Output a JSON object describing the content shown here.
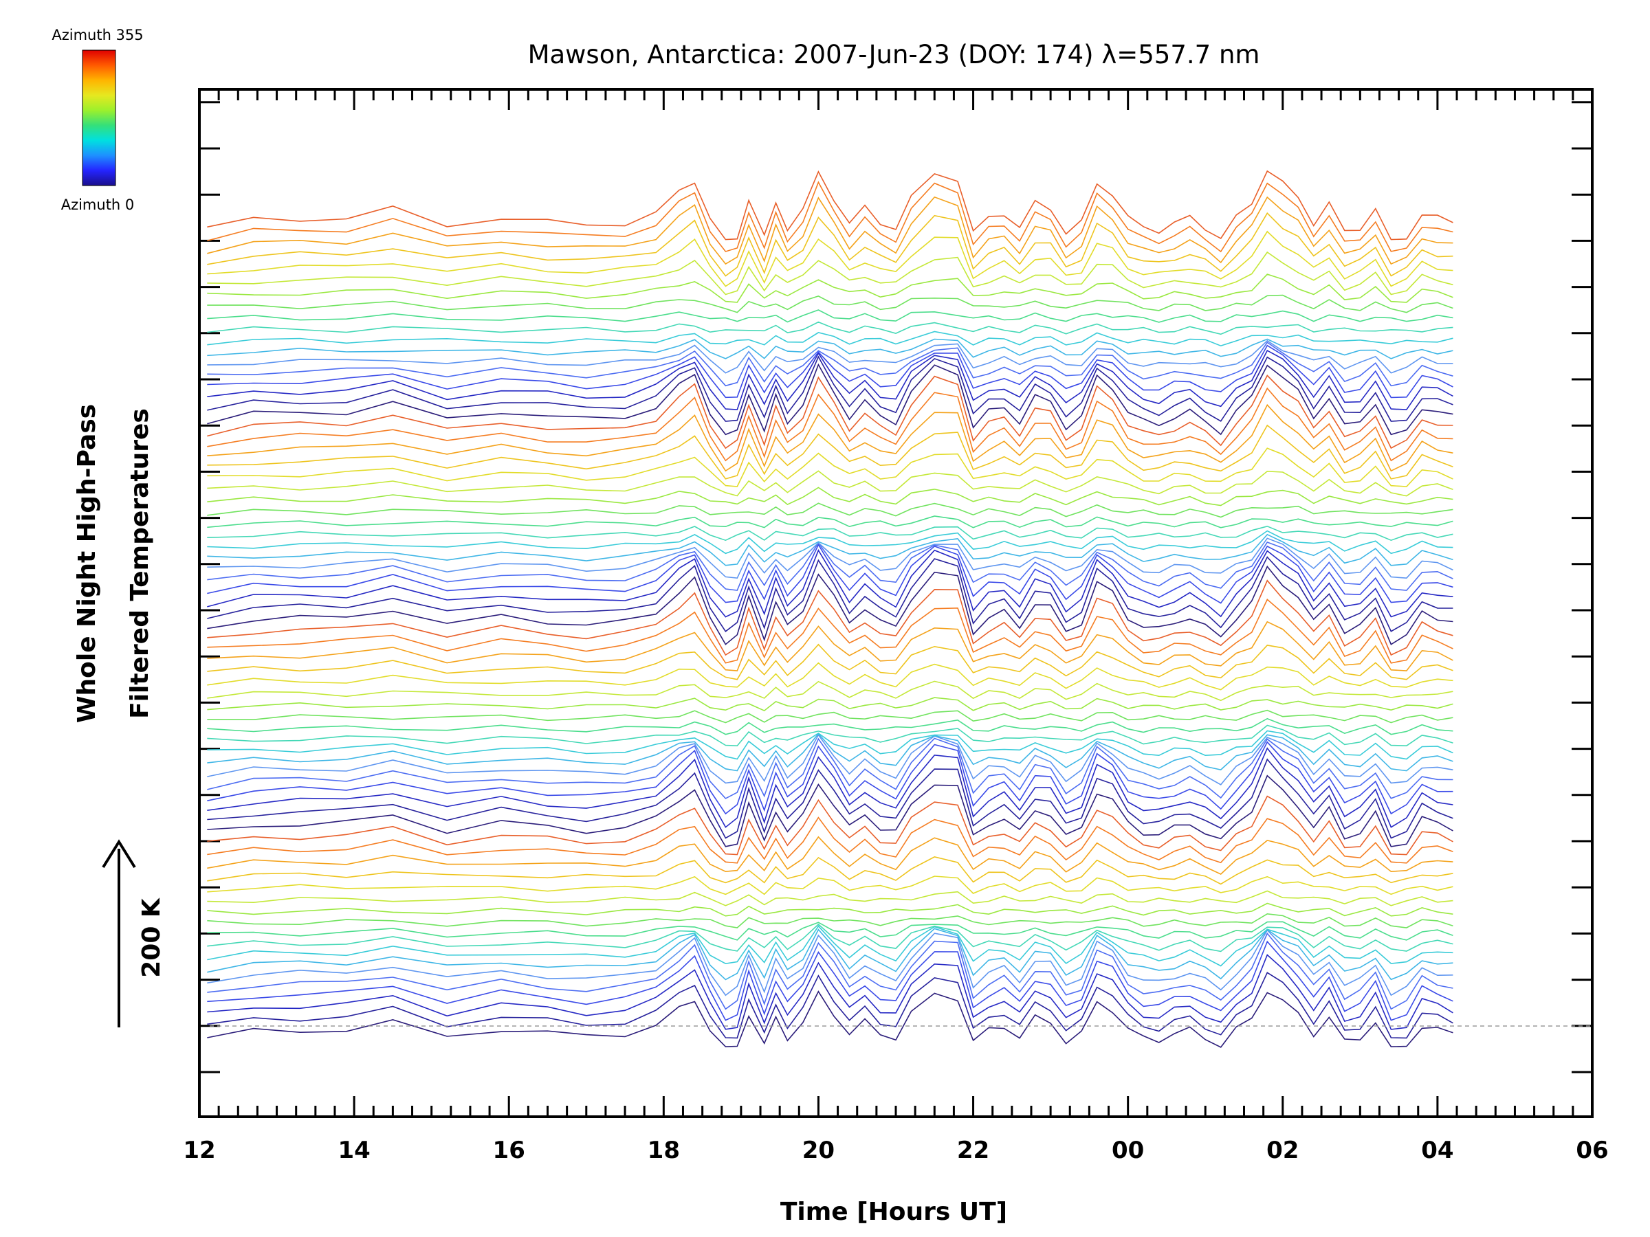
{
  "chart_data": {
    "type": "line",
    "title": "Mawson, Antarctica: 2007-Jun-23 (DOY: 174) λ=557.7 nm",
    "xlabel": "Time [Hours UT]",
    "ylabel_line1": "Whole Night High-Pass",
    "ylabel_line2": "Filtered Temperatures",
    "scale_label": "200 K",
    "colorbar": {
      "top_label": "Azimuth 355",
      "bottom_label": "Azimuth 0",
      "colors": [
        "#1a0f8c",
        "#2424ff",
        "#1e90ff",
        "#00e0e0",
        "#34e07a",
        "#9cf02c",
        "#e6e820",
        "#ffb400",
        "#ff5a00",
        "#e00000"
      ]
    },
    "x_tick_labels": [
      "12",
      "14",
      "16",
      "18",
      "20",
      "22",
      "00",
      "02",
      "04",
      "06"
    ],
    "xlim_hours": [
      12,
      30
    ],
    "n_traces": 72,
    "trace_colors_repeating": [
      "#2b1d7a",
      "#26219c",
      "#2528c4",
      "#3a4ae8",
      "#4d6df2",
      "#5f96f0",
      "#3fb6e6",
      "#38cbd8",
      "#44d8b6",
      "#4bdd8c",
      "#70e35e",
      "#9ae840",
      "#c4e838",
      "#e2dc2a",
      "#eec41e",
      "#f4a21a",
      "#f57d22",
      "#e85f2a"
    ],
    "base_pattern_K": {
      "hours": [
        12.1,
        12.7,
        13.3,
        13.9,
        14.5,
        15.2,
        15.9,
        16.5,
        17.0,
        17.5,
        17.9,
        18.2,
        18.4,
        18.6,
        18.8,
        18.95,
        19.1,
        19.3,
        19.45,
        19.6,
        19.8,
        20.0,
        20.2,
        20.4,
        20.6,
        20.8,
        21.0,
        21.2,
        21.5,
        21.8,
        22.0,
        22.2,
        22.4,
        22.6,
        22.8,
        23.0,
        23.2,
        23.4,
        23.6,
        23.8,
        24.0,
        24.2,
        24.4,
        24.6,
        24.8,
        25.0,
        25.2,
        25.4,
        25.6,
        25.8,
        26.0,
        26.2,
        26.4,
        26.6,
        26.8,
        27.0,
        27.2,
        27.4,
        27.6,
        27.8,
        28.0,
        28.2
      ],
      "deviation": [
        0,
        16,
        18,
        20,
        38,
        4,
        22,
        12,
        4,
        10,
        30,
        72,
        96,
        20,
        -30,
        -20,
        60,
        -20,
        50,
        0,
        36,
        110,
        60,
        10,
        40,
        10,
        0,
        60,
        110,
        100,
        -10,
        20,
        30,
        0,
        50,
        40,
        -10,
        10,
        90,
        70,
        20,
        0,
        -5,
        10,
        20,
        0,
        -20,
        20,
        50,
        120,
        90,
        60,
        10,
        50,
        -10,
        0,
        40,
        -30,
        -20,
        30,
        20,
        10
      ]
    },
    "ylim_trace_offset": [
      0,
      72
    ]
  }
}
